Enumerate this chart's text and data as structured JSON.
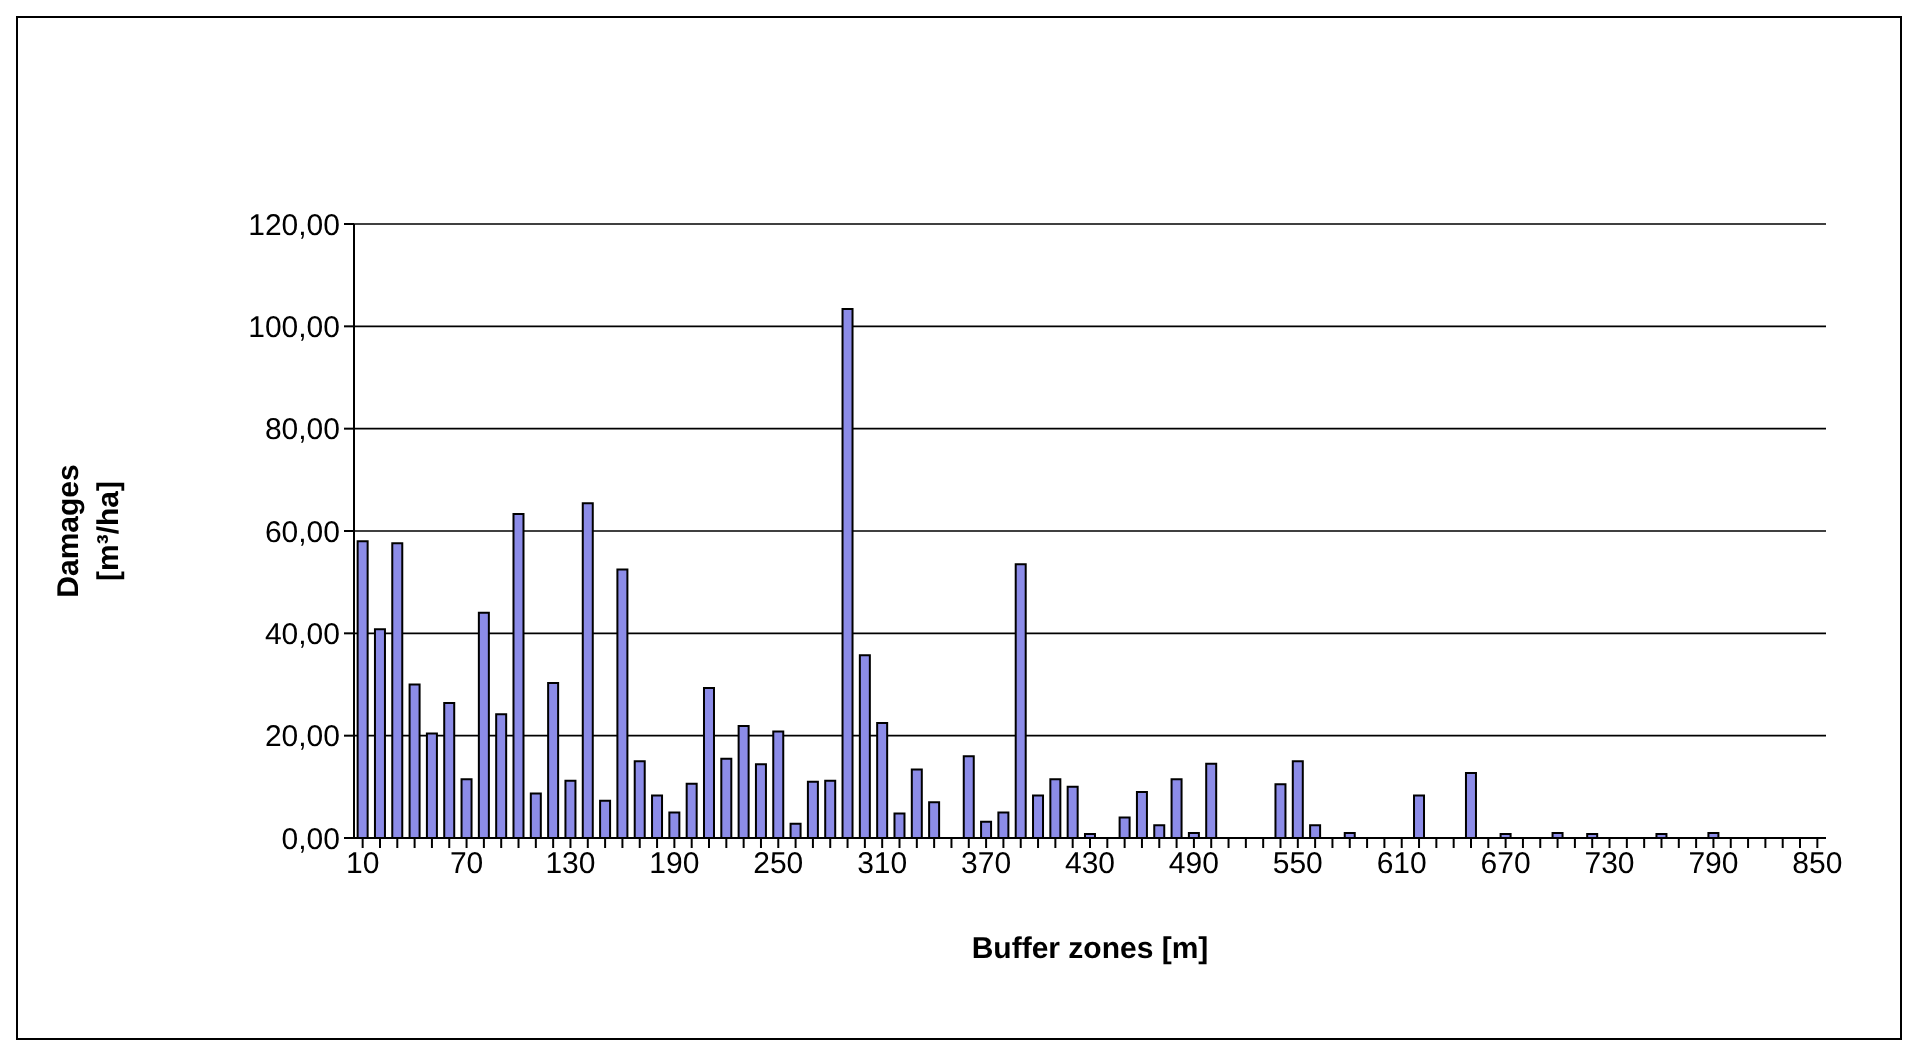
{
  "chart_data": {
    "type": "bar",
    "xlabel": "Buffer zones [m]",
    "ylabel": "Damages [m³/ha]",
    "categories": [
      "10",
      null,
      null,
      null,
      null,
      null,
      "70",
      null,
      null,
      null,
      null,
      null,
      "130",
      null,
      null,
      null,
      null,
      null,
      "190",
      null,
      null,
      null,
      null,
      null,
      "250",
      null,
      null,
      null,
      null,
      null,
      "310",
      null,
      null,
      null,
      null,
      null,
      "370",
      null,
      null,
      null,
      null,
      null,
      "430",
      null,
      null,
      null,
      null,
      null,
      "490",
      null,
      null,
      null,
      null,
      null,
      "550",
      null,
      null,
      null,
      null,
      null,
      "610",
      null,
      null,
      null,
      null,
      null,
      "670",
      null,
      null,
      null,
      null,
      null,
      "730",
      null,
      null,
      null,
      null,
      null,
      "790",
      null,
      null,
      null,
      null,
      null,
      "850"
    ],
    "values": [
      58,
      40.8,
      57.6,
      30,
      20.4,
      26.4,
      11.5,
      44,
      24.2,
      63.3,
      8.7,
      30.3,
      11.2,
      65.4,
      7.3,
      52.5,
      15,
      8.3,
      5,
      10.6,
      29.3,
      15.5,
      21.9,
      14.4,
      20.8,
      2.8,
      11,
      11.2,
      103.4,
      35.7,
      22.5,
      4.8,
      13.4,
      7,
      null,
      16,
      3.2,
      5,
      53.5,
      8.3,
      11.5,
      10,
      0.8,
      null,
      4,
      9,
      2.5,
      11.5,
      1,
      14.5,
      null,
      null,
      null,
      10.5,
      15,
      2.5,
      null,
      1,
      null,
      null,
      null,
      8.3,
      null,
      null,
      12.7,
      null,
      0.8,
      null,
      null,
      1,
      null,
      0.8,
      null,
      null,
      null,
      0.8,
      null,
      null,
      1,
      null,
      null,
      null,
      null,
      null,
      null
    ],
    "color": "#8c8ce8",
    "ylim": [
      0,
      120
    ],
    "yticks": [
      {
        "value": 0,
        "label": "0,00"
      },
      {
        "value": 20,
        "label": "20,00"
      },
      {
        "value": 40,
        "label": "40,00"
      },
      {
        "value": 60,
        "label": "60,00"
      },
      {
        "value": 80,
        "label": "80,00"
      },
      {
        "value": 100,
        "label": "100,00"
      },
      {
        "value": 120,
        "label": "120,00"
      }
    ],
    "grid": "y",
    "legend": false
  }
}
